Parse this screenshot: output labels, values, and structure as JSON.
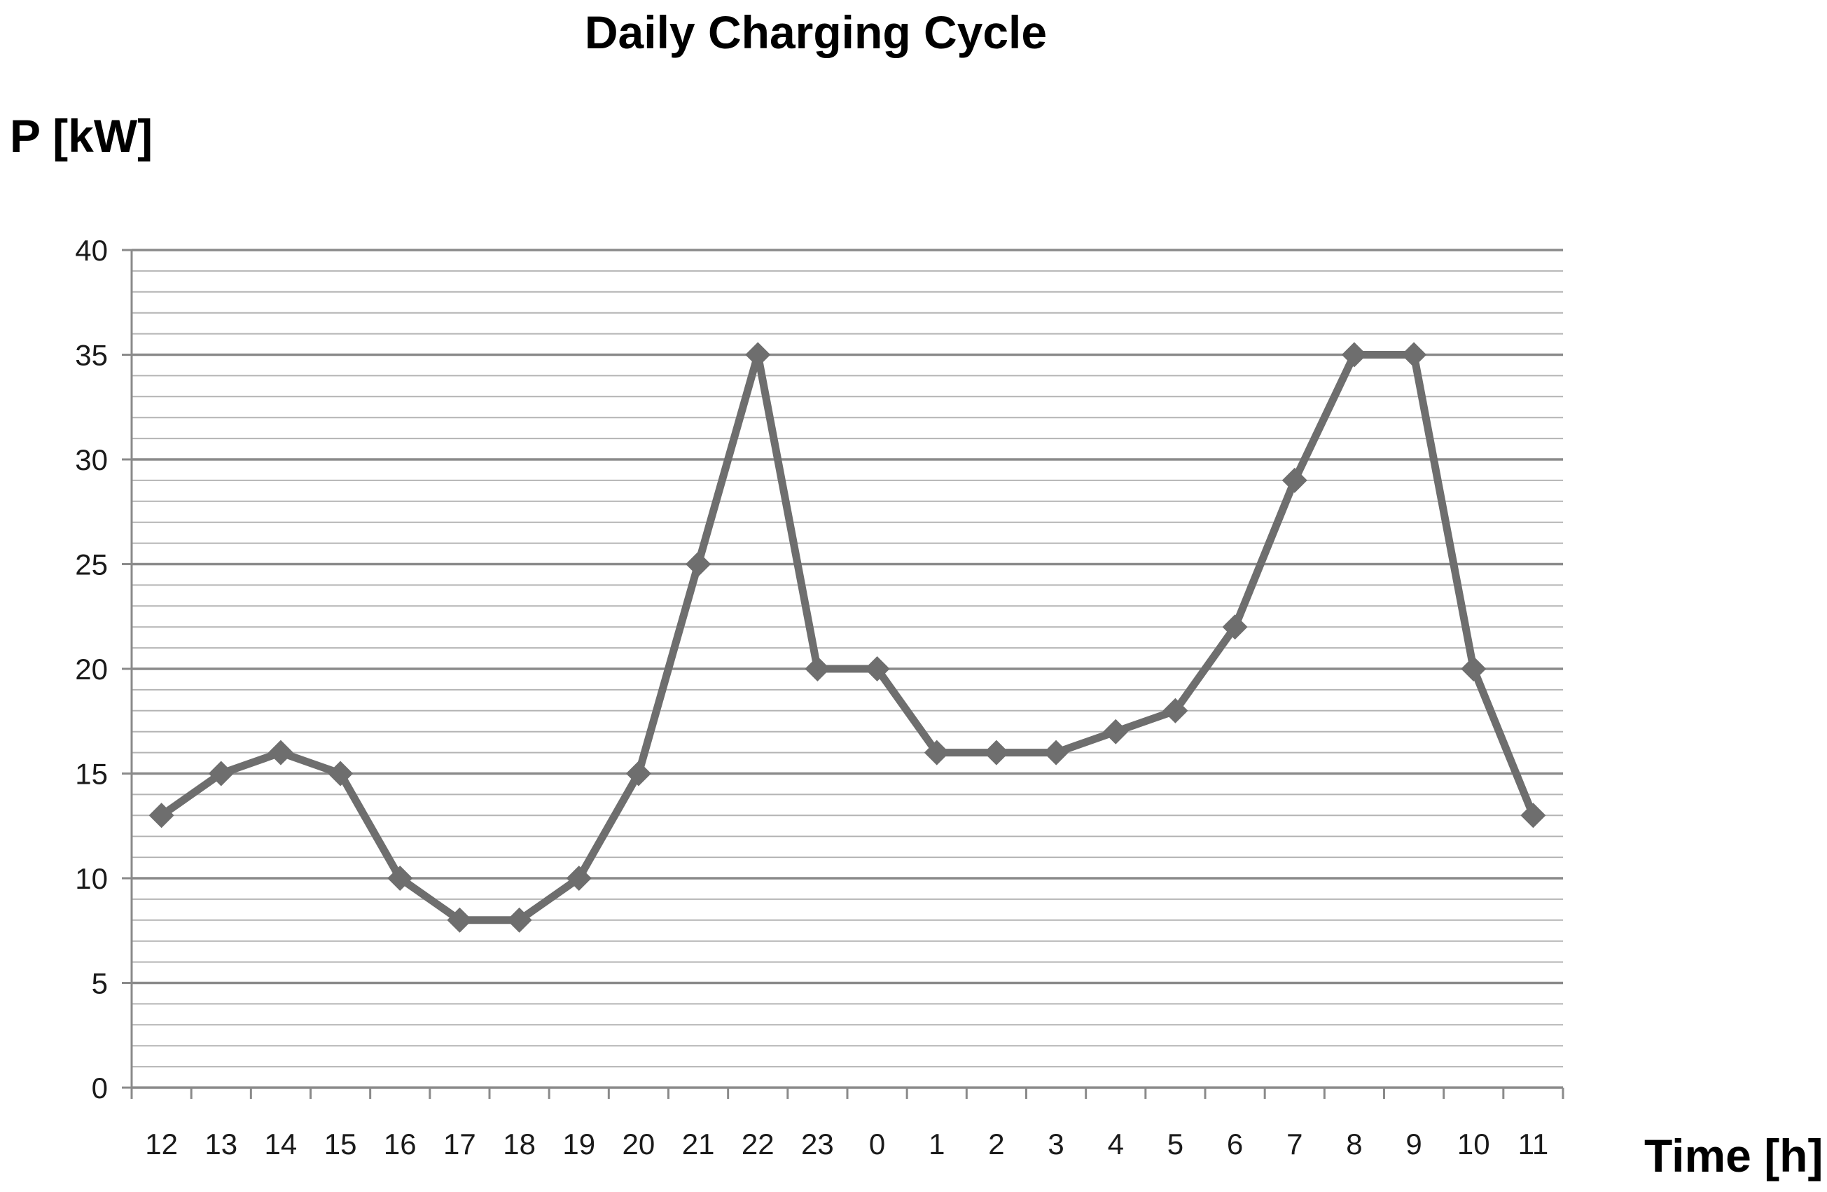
{
  "chart_data": {
    "type": "line",
    "title": "Daily Charging Cycle",
    "ylabel": "P [kW]",
    "xlabel": "Time [h]",
    "categories": [
      "12",
      "13",
      "14",
      "15",
      "16",
      "17",
      "18",
      "19",
      "20",
      "21",
      "22",
      "23",
      "0",
      "1",
      "2",
      "3",
      "4",
      "5",
      "6",
      "7",
      "8",
      "9",
      "10",
      "11"
    ],
    "series": [
      {
        "values": [
          13,
          15,
          16,
          15,
          10,
          8,
          8,
          10,
          15,
          25,
          35,
          20,
          20,
          16,
          16,
          16,
          17,
          18,
          22,
          29,
          35,
          35,
          20,
          13
        ]
      }
    ],
    "ylim": [
      0,
      40
    ],
    "yticks": [
      "0",
      "5",
      "10",
      "15",
      "20",
      "25",
      "30",
      "35",
      "40"
    ],
    "grid": {
      "major_step": 5,
      "minor_step": 1
    },
    "colors": {
      "line": "#6e6e6e",
      "marker": "#6e6e6e",
      "major_grid": "#8a8a8a",
      "minor_grid": "#b4b4b4",
      "axis": "#8a8a8a"
    }
  }
}
